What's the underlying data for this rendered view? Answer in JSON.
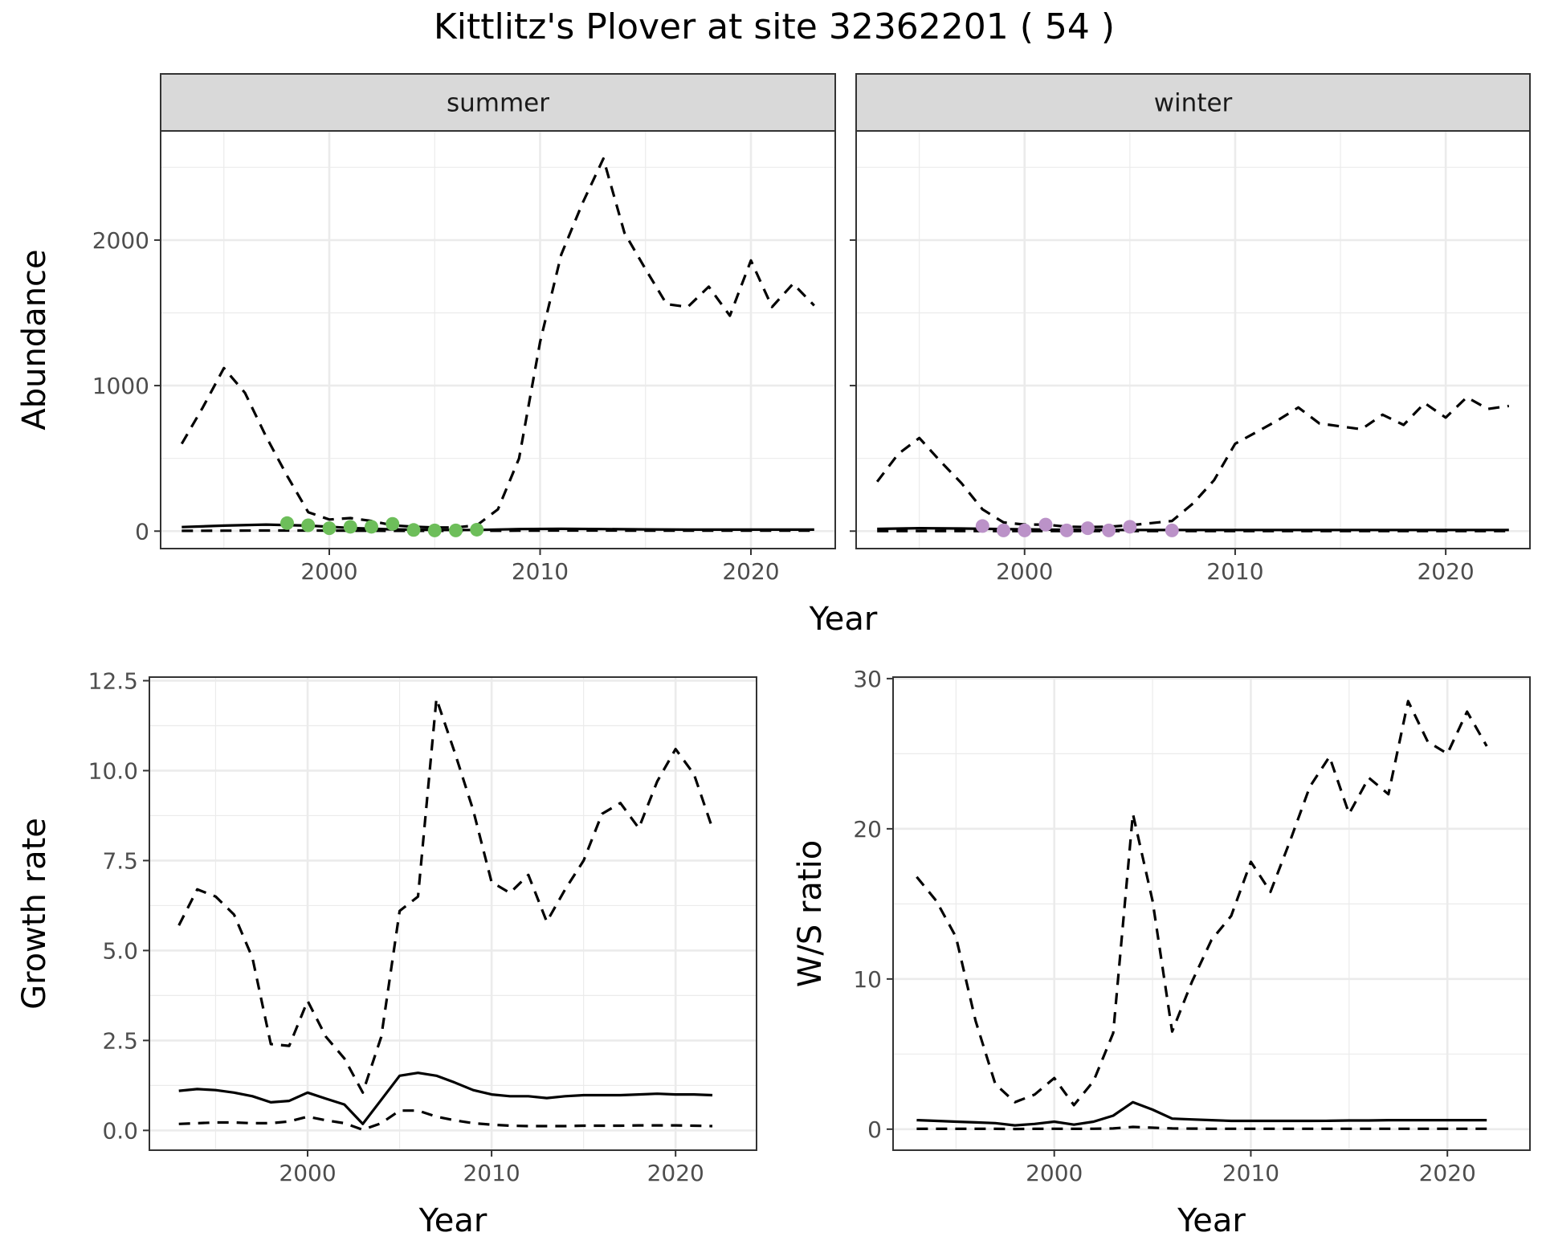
{
  "title": "Kittlitz's Plover at site 32362201 ( 54 )",
  "colors": {
    "summer_points": "#6DBE5A",
    "winter_points": "#BB92C8",
    "line": "#000000",
    "strip_bg": "#D9D9D9",
    "grid": "#EBEBEB"
  },
  "chart_data": [
    {
      "id": "abundance-summer",
      "type": "line",
      "panel_label": "summer",
      "xlabel": "Year",
      "ylabel": "Abundance",
      "xlim": [
        1992,
        2024
      ],
      "ylim": [
        -120,
        2750
      ],
      "xticks": [
        2000,
        2010,
        2020
      ],
      "yticks": [
        0,
        1000,
        2000
      ],
      "ytick_labels": [
        "0",
        "1000",
        "2000"
      ],
      "series": [
        {
          "role": "estimate",
          "style": "solid",
          "x": [
            1993,
            1995,
            1997,
            1999,
            2001,
            2003,
            2005,
            2007,
            2009,
            2011,
            2013,
            2015,
            2017,
            2019,
            2021,
            2023
          ],
          "y": [
            28,
            38,
            45,
            38,
            22,
            12,
            8,
            8,
            14,
            16,
            14,
            12,
            10,
            10,
            10,
            10
          ]
        },
        {
          "role": "lower",
          "style": "dashed",
          "x": [
            1993,
            1995,
            1997,
            1999,
            2001,
            2003,
            2005,
            2007,
            2009,
            2011,
            2013,
            2015,
            2017,
            2019,
            2021,
            2023
          ],
          "y": [
            2,
            3,
            4,
            4,
            3,
            2,
            2,
            2,
            3,
            4,
            4,
            3,
            3,
            3,
            3,
            3
          ]
        },
        {
          "role": "upper",
          "style": "dashed",
          "x": [
            1993,
            1994,
            1995,
            1996,
            1997,
            1998,
            1999,
            2000,
            2001,
            2002,
            2003,
            2004,
            2005,
            2006,
            2007,
            2008,
            2009,
            2010,
            2011,
            2012,
            2013,
            2014,
            2015,
            2016,
            2017,
            2018,
            2019,
            2020,
            2021,
            2022,
            2023
          ],
          "y": [
            600,
            850,
            1120,
            950,
            650,
            380,
            130,
            80,
            90,
            70,
            40,
            30,
            25,
            25,
            40,
            150,
            500,
            1300,
            1900,
            2250,
            2560,
            2050,
            1800,
            1560,
            1540,
            1680,
            1480,
            1860,
            1540,
            1700,
            1550
          ]
        }
      ],
      "points": {
        "x": [
          1998,
          1999,
          2000,
          2001,
          2002,
          2003,
          2004,
          2005,
          2006,
          2007
        ],
        "y": [
          55,
          40,
          20,
          30,
          30,
          50,
          8,
          5,
          5,
          10
        ]
      }
    },
    {
      "id": "abundance-winter",
      "type": "line",
      "panel_label": "winter",
      "xlabel": "Year",
      "ylabel": "",
      "xlim": [
        1992,
        2024
      ],
      "ylim": [
        -120,
        2750
      ],
      "xticks": [
        2000,
        2010,
        2020
      ],
      "yticks": [
        0,
        1000,
        2000
      ],
      "ytick_labels": [],
      "series": [
        {
          "role": "estimate",
          "style": "solid",
          "x": [
            1993,
            1995,
            1997,
            1999,
            2001,
            2003,
            2005,
            2007,
            2009,
            2011,
            2013,
            2015,
            2017,
            2019,
            2021,
            2023
          ],
          "y": [
            15,
            20,
            18,
            14,
            10,
            8,
            8,
            8,
            8,
            8,
            8,
            8,
            8,
            8,
            8,
            8
          ]
        },
        {
          "role": "lower",
          "style": "dashed",
          "x": [
            1993,
            1995,
            1997,
            1999,
            2001,
            2003,
            2005,
            2007,
            2009,
            2011,
            2013,
            2015,
            2017,
            2019,
            2021,
            2023
          ],
          "y": [
            1,
            1,
            1,
            1,
            1,
            1,
            1,
            1,
            1,
            1,
            1,
            1,
            1,
            1,
            1,
            1
          ]
        },
        {
          "role": "upper",
          "style": "dashed",
          "x": [
            1993,
            1994,
            1995,
            1996,
            1997,
            1998,
            1999,
            2000,
            2001,
            2002,
            2003,
            2004,
            2005,
            2006,
            2007,
            2008,
            2009,
            2010,
            2011,
            2012,
            2013,
            2014,
            2015,
            2016,
            2017,
            2018,
            2019,
            2020,
            2021,
            2022,
            2023
          ],
          "y": [
            340,
            530,
            640,
            480,
            330,
            150,
            60,
            45,
            45,
            30,
            28,
            30,
            40,
            55,
            70,
            190,
            350,
            600,
            680,
            760,
            850,
            740,
            720,
            700,
            800,
            730,
            880,
            780,
            920,
            840,
            860
          ]
        }
      ],
      "points": {
        "x": [
          1998,
          1999,
          2000,
          2001,
          2002,
          2003,
          2004,
          2005,
          2007
        ],
        "y": [
          35,
          5,
          5,
          45,
          5,
          20,
          5,
          30,
          5
        ]
      }
    },
    {
      "id": "growth-rate",
      "type": "line",
      "xlabel": "Year",
      "ylabel": "Growth rate",
      "xlim": [
        1991.4,
        2024.4
      ],
      "ylim": [
        -0.55,
        12.6
      ],
      "xticks": [
        2000,
        2010,
        2020
      ],
      "yticks": [
        0,
        2.5,
        5,
        7.5,
        10,
        12.5
      ],
      "ytick_labels": [
        "0.0",
        "2.5",
        "5.0",
        "7.5",
        "10.0",
        "12.5"
      ],
      "series": [
        {
          "role": "estimate",
          "style": "solid",
          "x": [
            1993,
            1994,
            1995,
            1996,
            1997,
            1998,
            1999,
            2000,
            2001,
            2002,
            2003,
            2004,
            2005,
            2006,
            2007,
            2008,
            2009,
            2010,
            2011,
            2012,
            2013,
            2014,
            2015,
            2016,
            2017,
            2018,
            2019,
            2020,
            2021,
            2022
          ],
          "y": [
            1.1,
            1.15,
            1.12,
            1.05,
            0.95,
            0.78,
            0.82,
            1.05,
            0.88,
            0.72,
            0.18,
            0.85,
            1.52,
            1.6,
            1.52,
            1.33,
            1.12,
            1.0,
            0.95,
            0.95,
            0.9,
            0.95,
            0.98,
            0.98,
            0.98,
            1.0,
            1.02,
            1.0,
            1.0,
            0.98
          ]
        },
        {
          "role": "lower",
          "style": "dashed",
          "x": [
            1993,
            1994,
            1995,
            1996,
            1997,
            1998,
            1999,
            2000,
            2001,
            2002,
            2003,
            2004,
            2005,
            2006,
            2007,
            2008,
            2009,
            2010,
            2011,
            2012,
            2013,
            2014,
            2015,
            2016,
            2017,
            2018,
            2019,
            2020,
            2021,
            2022
          ],
          "y": [
            0.18,
            0.2,
            0.22,
            0.22,
            0.2,
            0.2,
            0.25,
            0.38,
            0.28,
            0.2,
            0.02,
            0.2,
            0.55,
            0.55,
            0.38,
            0.28,
            0.2,
            0.16,
            0.13,
            0.12,
            0.12,
            0.12,
            0.13,
            0.13,
            0.13,
            0.14,
            0.14,
            0.14,
            0.13,
            0.12
          ]
        },
        {
          "role": "upper",
          "style": "dashed",
          "x": [
            1993,
            1994,
            1995,
            1996,
            1997,
            1998,
            1999,
            2000,
            2001,
            2002,
            2003,
            2004,
            2005,
            2006,
            2007,
            2008,
            2009,
            2010,
            2011,
            2012,
            2013,
            2014,
            2015,
            2016,
            2017,
            2018,
            2019,
            2020,
            2021,
            2022
          ],
          "y": [
            5.7,
            6.7,
            6.5,
            6.0,
            4.8,
            2.4,
            2.35,
            3.6,
            2.6,
            2.0,
            1.05,
            2.6,
            6.1,
            6.5,
            12.0,
            10.5,
            8.9,
            6.9,
            6.6,
            7.1,
            5.8,
            6.7,
            7.5,
            8.8,
            9.1,
            8.4,
            9.7,
            10.6,
            9.9,
            8.4
          ]
        }
      ]
    },
    {
      "id": "ws-ratio",
      "type": "line",
      "xlabel": "Year",
      "ylabel": "W/S ratio",
      "xlim": [
        1991.8,
        2024.2
      ],
      "ylim": [
        -1.4,
        30.1
      ],
      "xticks": [
        2000,
        2010,
        2020
      ],
      "yticks": [
        0,
        10,
        20,
        30
      ],
      "ytick_labels": [
        "0",
        "10",
        "20",
        "30"
      ],
      "series": [
        {
          "role": "estimate",
          "style": "solid",
          "x": [
            1993,
            1994,
            1995,
            1996,
            1997,
            1998,
            1999,
            2000,
            2001,
            2002,
            2003,
            2004,
            2005,
            2006,
            2007,
            2008,
            2009,
            2010,
            2011,
            2012,
            2013,
            2014,
            2015,
            2016,
            2017,
            2018,
            2019,
            2020,
            2021,
            2022
          ],
          "y": [
            0.6,
            0.55,
            0.5,
            0.45,
            0.4,
            0.25,
            0.35,
            0.5,
            0.3,
            0.5,
            0.9,
            1.8,
            1.3,
            0.7,
            0.65,
            0.6,
            0.55,
            0.55,
            0.55,
            0.55,
            0.55,
            0.56,
            0.58,
            0.58,
            0.6,
            0.6,
            0.6,
            0.6,
            0.6,
            0.6
          ]
        },
        {
          "role": "lower",
          "style": "dashed",
          "x": [
            1993,
            1994,
            1995,
            1996,
            1997,
            1998,
            1999,
            2000,
            2001,
            2002,
            2003,
            2004,
            2005,
            2006,
            2007,
            2008,
            2009,
            2010,
            2011,
            2012,
            2013,
            2014,
            2015,
            2016,
            2017,
            2018,
            2019,
            2020,
            2021,
            2022
          ],
          "y": [
            0.02,
            0.02,
            0.02,
            0.02,
            0.02,
            0.01,
            0.02,
            0.03,
            0.02,
            0.03,
            0.05,
            0.15,
            0.1,
            0.05,
            0.04,
            0.03,
            0.03,
            0.03,
            0.03,
            0.03,
            0.03,
            0.03,
            0.03,
            0.03,
            0.03,
            0.03,
            0.03,
            0.03,
            0.03,
            0.03
          ]
        },
        {
          "role": "upper",
          "style": "dashed",
          "x": [
            1993,
            1994,
            1995,
            1996,
            1997,
            1998,
            1999,
            2000,
            2001,
            2002,
            2003,
            2004,
            2005,
            2006,
            2007,
            2008,
            2009,
            2010,
            2011,
            2012,
            2013,
            2014,
            2015,
            2016,
            2017,
            2018,
            2019,
            2020,
            2021,
            2022
          ],
          "y": [
            16.8,
            15.2,
            12.8,
            7.2,
            3.0,
            1.8,
            2.3,
            3.4,
            1.6,
            3.2,
            6.4,
            21.0,
            15.2,
            6.5,
            9.8,
            12.6,
            14.2,
            17.8,
            15.8,
            19.2,
            22.8,
            24.8,
            21.0,
            23.4,
            22.3,
            28.5,
            25.8,
            25.0,
            27.8,
            25.5
          ]
        }
      ]
    }
  ]
}
